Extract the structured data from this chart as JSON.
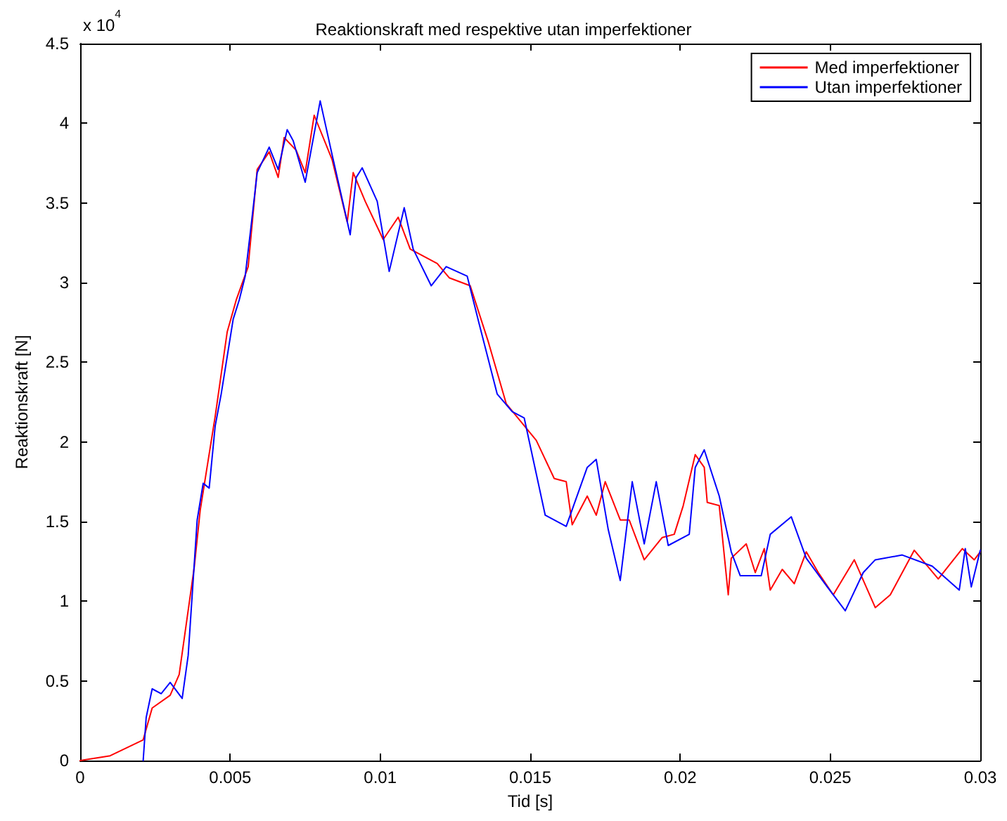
{
  "chart_data": {
    "type": "line",
    "title": "Reaktionskraft med respektive utan imperfektioner",
    "xlabel": "Tid [s]",
    "ylabel": "Reaktionskraft [N]",
    "annotations": [
      "x 10$^{4}$"
    ],
    "xlim": [
      0,
      0.03
    ],
    "xticks": [
      0,
      0.005,
      0.01,
      0.015,
      0.02,
      0.025,
      0.03
    ],
    "ylim": [
      0,
      4.5
    ],
    "yticks": [
      0,
      0.5,
      1,
      1.5,
      2,
      2.5,
      3,
      3.5,
      4,
      4.5
    ],
    "grid": false,
    "legend": "top right",
    "marker": "none",
    "line_style": "solid",
    "series": [
      {
        "name": "Med imperfektioner",
        "color": "#ff0000",
        "x": [
          0,
          0.001,
          0.0021,
          0.0024,
          0.003,
          0.0033,
          0.0038,
          0.004,
          0.0045,
          0.0049,
          0.0052,
          0.0056,
          0.0059,
          0.0063,
          0.0066,
          0.0068,
          0.0072,
          0.0075,
          0.0078,
          0.0084,
          0.0089,
          0.0091,
          0.0095,
          0.0101,
          0.0106,
          0.011,
          0.0119,
          0.0123,
          0.013,
          0.0136,
          0.0142,
          0.0152,
          0.0158,
          0.0162,
          0.0164,
          0.0169,
          0.0172,
          0.0175,
          0.018,
          0.0183,
          0.0188,
          0.0194,
          0.0198,
          0.0201,
          0.0205,
          0.0208,
          0.0209,
          0.0213,
          0.0216,
          0.0217,
          0.0222,
          0.0225,
          0.0228,
          0.023,
          0.0234,
          0.0238,
          0.0242,
          0.0246,
          0.0251,
          0.0258,
          0.0265,
          0.027,
          0.0278,
          0.0286,
          0.0294,
          0.0298,
          0.03
        ],
        "values": [
          0,
          0.03,
          0.13,
          0.33,
          0.41,
          0.54,
          1.21,
          1.57,
          2.16,
          2.69,
          2.89,
          3.1,
          3.71,
          3.82,
          3.66,
          3.91,
          3.83,
          3.69,
          4.05,
          3.77,
          3.38,
          3.69,
          3.51,
          3.27,
          3.41,
          3.21,
          3.12,
          3.03,
          2.98,
          2.63,
          2.24,
          2.01,
          1.77,
          1.75,
          1.48,
          1.66,
          1.54,
          1.75,
          1.51,
          1.51,
          1.26,
          1.4,
          1.42,
          1.6,
          1.92,
          1.84,
          1.62,
          1.6,
          1.04,
          1.27,
          1.36,
          1.18,
          1.33,
          1.07,
          1.2,
          1.11,
          1.31,
          1.18,
          1.04,
          1.26,
          0.96,
          1.04,
          1.32,
          1.14,
          1.33,
          1.26,
          1.31
        ]
      },
      {
        "name": "Utan imperfektioner",
        "color": "#0000ff",
        "x": [
          0.0021,
          0.0022,
          0.0024,
          0.0027,
          0.003,
          0.0034,
          0.0036,
          0.0039,
          0.0041,
          0.0043,
          0.0045,
          0.0047,
          0.0051,
          0.0053,
          0.0055,
          0.0057,
          0.0059,
          0.0063,
          0.0066,
          0.0069,
          0.0071,
          0.0075,
          0.008,
          0.0084,
          0.009,
          0.0092,
          0.0094,
          0.0099,
          0.0103,
          0.0108,
          0.0111,
          0.0117,
          0.0122,
          0.0129,
          0.0133,
          0.0139,
          0.0144,
          0.0148,
          0.0155,
          0.0162,
          0.0169,
          0.0172,
          0.0176,
          0.018,
          0.0184,
          0.0188,
          0.0192,
          0.0196,
          0.0203,
          0.0205,
          0.0208,
          0.0213,
          0.0217,
          0.022,
          0.0227,
          0.023,
          0.0237,
          0.0242,
          0.0249,
          0.0255,
          0.0261,
          0.0265,
          0.0274,
          0.0284,
          0.0293,
          0.0295,
          0.0297,
          0.03
        ],
        "values": [
          0,
          0.27,
          0.45,
          0.42,
          0.49,
          0.39,
          0.66,
          1.51,
          1.74,
          1.71,
          2.1,
          2.3,
          2.77,
          2.89,
          3.04,
          3.36,
          3.69,
          3.85,
          3.71,
          3.96,
          3.89,
          3.63,
          4.14,
          3.8,
          3.3,
          3.66,
          3.72,
          3.51,
          3.07,
          3.47,
          3.21,
          2.98,
          3.1,
          3.04,
          2.74,
          2.3,
          2.19,
          2.15,
          1.54,
          1.47,
          1.84,
          1.89,
          1.45,
          1.13,
          1.75,
          1.36,
          1.75,
          1.35,
          1.42,
          1.84,
          1.95,
          1.66,
          1.31,
          1.16,
          1.16,
          1.42,
          1.53,
          1.27,
          1.09,
          0.94,
          1.18,
          1.26,
          1.29,
          1.22,
          1.07,
          1.33,
          1.09,
          1.32
        ]
      }
    ]
  }
}
